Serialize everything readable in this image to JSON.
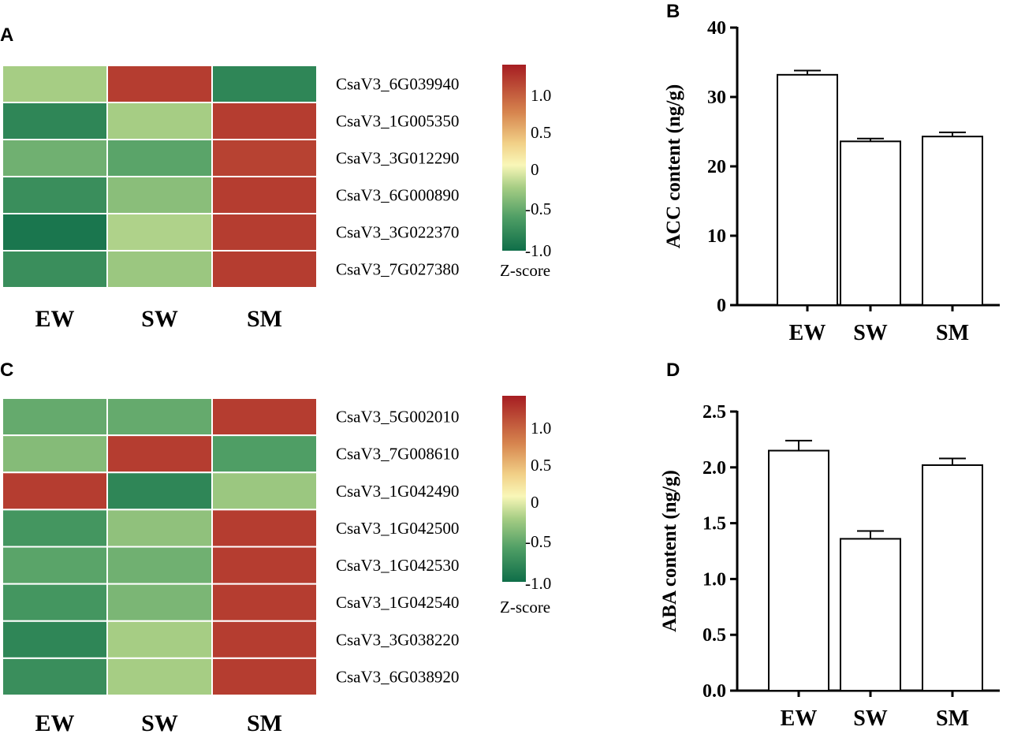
{
  "figure": {
    "panels": [
      {
        "id": "A",
        "label": "A"
      },
      {
        "id": "B",
        "label": "B"
      },
      {
        "id": "C",
        "label": "C"
      },
      {
        "id": "D",
        "label": "D"
      }
    ]
  },
  "colorscale": {
    "low": "#0f6e49",
    "mid": "#f9f7b8",
    "high": "#a61d22",
    "legend_title": "Z-score",
    "ticks": [
      "1.0",
      "0.5",
      "0",
      "-0.5",
      "-1.0"
    ],
    "tick_values": [
      1.0,
      0.5,
      0,
      -0.5,
      -1.0
    ],
    "range": [
      -1.15,
      1.35
    ]
  },
  "chart_data": [
    {
      "panel": "A",
      "type": "heatmap",
      "columns": [
        "EW",
        "SW",
        "SM"
      ],
      "rows": [
        "CsaV3_6G039940",
        "CsaV3_1G005350",
        "CsaV3_3G012290",
        "CsaV3_6G000890",
        "CsaV3_3G022370",
        "CsaV3_7G027380"
      ],
      "values": [
        [
          -0.45,
          1.15,
          -1.0
        ],
        [
          -1.0,
          -0.45,
          1.15
        ],
        [
          -0.7,
          -0.8,
          1.12
        ],
        [
          -0.95,
          -0.58,
          1.15
        ],
        [
          -1.1,
          -0.4,
          1.15
        ],
        [
          -0.95,
          -0.5,
          1.15
        ]
      ],
      "legend_title": "Z-score"
    },
    {
      "panel": "B",
      "type": "bar",
      "categories": [
        "EW",
        "SW",
        "SM"
      ],
      "values": [
        33.2,
        23.6,
        24.3
      ],
      "errors": [
        0.6,
        0.4,
        0.6
      ],
      "ylabel": "ACC content (ng/g)",
      "ylim": [
        0,
        40
      ],
      "yticks": [
        0,
        10,
        20,
        30,
        40
      ],
      "ytick_labels": [
        "0",
        "10",
        "20",
        "30",
        "40"
      ]
    },
    {
      "panel": "C",
      "type": "heatmap",
      "columns": [
        "EW",
        "SW",
        "SM"
      ],
      "rows": [
        "CsaV3_5G002010",
        "CsaV3_7G008610",
        "CsaV3_1G042490",
        "CsaV3_1G042500",
        "CsaV3_1G042530",
        "CsaV3_1G042540",
        "CsaV3_3G038220",
        "CsaV3_6G038920"
      ],
      "values": [
        [
          -0.75,
          -0.75,
          1.15
        ],
        [
          -0.6,
          1.15,
          -0.85
        ],
        [
          1.15,
          -1.0,
          -0.5
        ],
        [
          -0.9,
          -0.55,
          1.15
        ],
        [
          -0.8,
          -0.7,
          1.15
        ],
        [
          -0.9,
          -0.65,
          1.15
        ],
        [
          -1.0,
          -0.45,
          1.15
        ],
        [
          -0.95,
          -0.45,
          1.15
        ]
      ],
      "legend_title": "Z-score"
    },
    {
      "panel": "D",
      "type": "bar",
      "categories": [
        "EW",
        "SW",
        "SM"
      ],
      "values": [
        2.15,
        1.36,
        2.02
      ],
      "errors": [
        0.09,
        0.07,
        0.06
      ],
      "ylabel": "ABA content (ng/g)",
      "ylim": [
        0,
        2.5
      ],
      "yticks": [
        0,
        0.5,
        1.0,
        1.5,
        2.0,
        2.5
      ],
      "ytick_labels": [
        "0.0",
        "0.5",
        "1.0",
        "1.5",
        "2.0",
        "2.5"
      ]
    }
  ]
}
